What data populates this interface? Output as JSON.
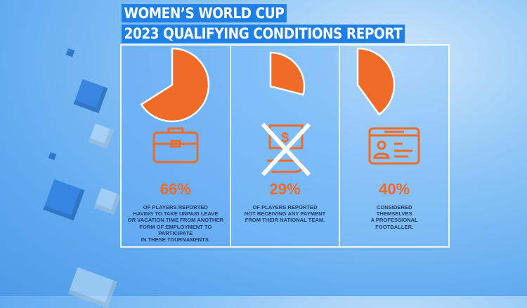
{
  "header": {
    "title_line1": "WOMEN’S WORLD CUP",
    "title_line2": "2023 QUALIFYING CONDITIONS REPORT"
  },
  "colors": {
    "accent": "#f06a28",
    "title_bg": "#1e7fe6",
    "text": "#223a66"
  },
  "chart_data": [
    {
      "type": "pie",
      "values": [
        66
      ],
      "unit": "%",
      "label": "66%",
      "description": "OF PLAYERS REPORTED\nHAVING TO TAKE UNPAID LEAVE\nOR VACATION TIME FROM ANOTHER\nFORM OF EMPLOYMENT TO\nPARTICIPATE\nIN THESE TOURNAMENTS.",
      "icon": "briefcase-icon"
    },
    {
      "type": "pie",
      "values": [
        29
      ],
      "unit": "%",
      "label": "29%",
      "description": "OF PLAYERS REPORTED\nNOT RECEIVING ANY PAYMENT\nFROM THEIR NATIONAL TEAM.",
      "icon": "crossed-out-money-icon"
    },
    {
      "type": "pie",
      "values": [
        40
      ],
      "unit": "%",
      "label": "40%",
      "description": "CONSIDERED\nTHEMSELVES\nA PROFESSIONAL\nFOOTBALLER.",
      "icon": "id-card-icon"
    }
  ]
}
